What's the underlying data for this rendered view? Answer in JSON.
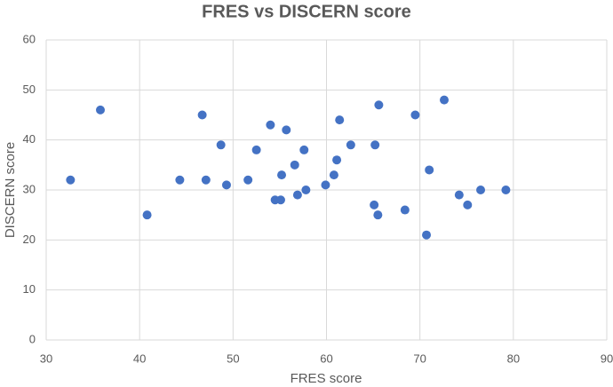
{
  "chart_data": {
    "type": "scatter",
    "title": "FRES vs DISCERN score",
    "x_label": "FRES score",
    "y_label": "DISCERN score",
    "color": "#4472c4",
    "grid": true,
    "xlim": [
      30,
      90
    ],
    "xticks": [
      30,
      40,
      50,
      60,
      70,
      80,
      90
    ],
    "ylim": [
      0,
      60
    ],
    "yticks": [
      0,
      10,
      20,
      30,
      40,
      50,
      60
    ],
    "x": [
      32.6,
      35.8,
      40.8,
      44.3,
      46.7,
      47.1,
      48.7,
      49.3,
      51.6,
      52.5,
      54.0,
      54.5,
      55.1,
      55.2,
      55.7,
      56.6,
      56.9,
      57.6,
      57.8,
      59.9,
      60.8,
      61.1,
      61.4,
      62.6,
      65.1,
      65.2,
      65.5,
      65.6,
      68.4,
      69.5,
      70.7,
      71.0,
      72.6,
      74.2,
      75.1,
      76.5,
      79.2
    ],
    "values": [
      32,
      46,
      25,
      32,
      45,
      32,
      39,
      31,
      32,
      38,
      43,
      28,
      28,
      33,
      42,
      35,
      29,
      38,
      30,
      31,
      33,
      36,
      44,
      39,
      27,
      39,
      25,
      47,
      26,
      45,
      21,
      34,
      48,
      29,
      27,
      30,
      30
    ]
  }
}
